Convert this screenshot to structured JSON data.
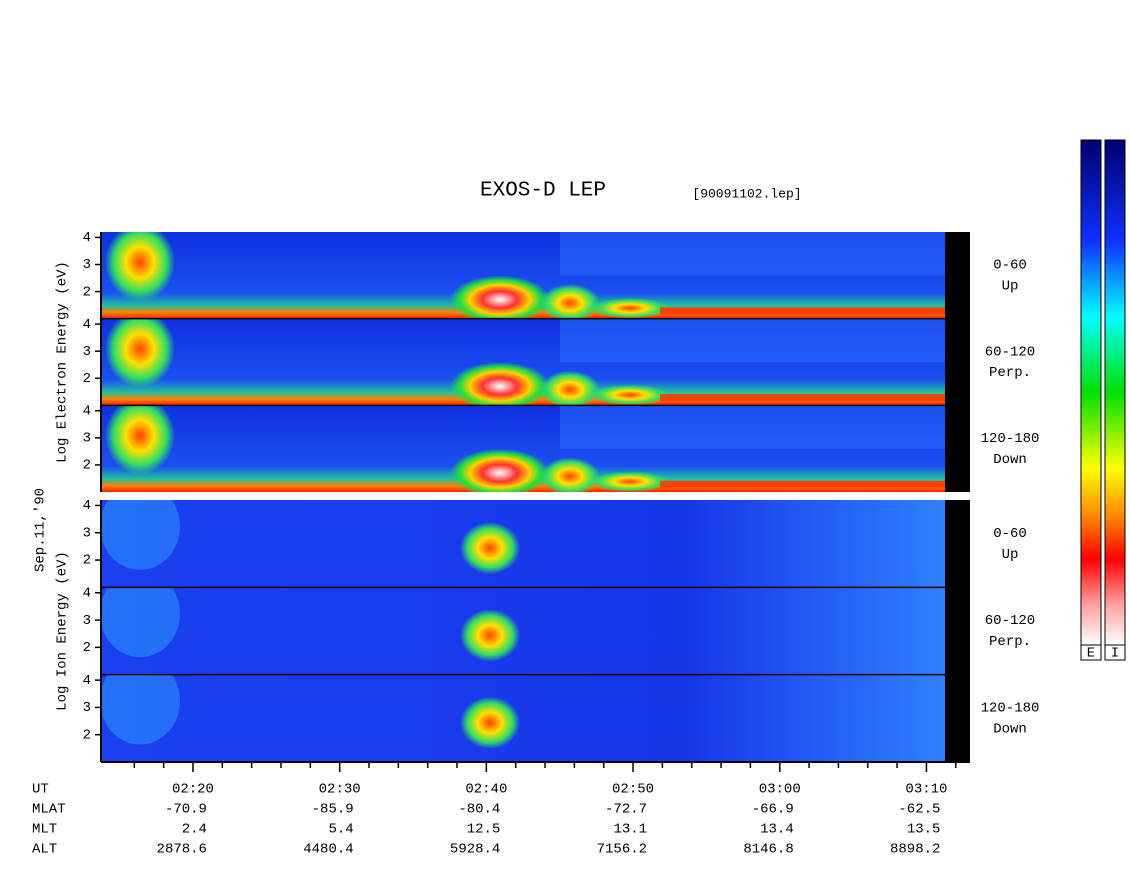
{
  "chart_data": {
    "type": "spectrogram",
    "title": "EXOS-D LEP",
    "subtitle": "[90091102.lep]",
    "date_label": "Sep.11,'90",
    "xlim": [
      133.73,
      192.97
    ],
    "xticks": [
      {
        "value": 140,
        "label": "02:20"
      },
      {
        "value": 150,
        "label": "02:30"
      },
      {
        "value": 160,
        "label": "02:40"
      },
      {
        "value": 170,
        "label": "02:50"
      },
      {
        "value": 180,
        "label": "03:00"
      },
      {
        "value": 190,
        "label": "03:10"
      }
    ],
    "xminorticks": [
      136,
      138,
      142,
      144,
      146,
      148,
      152,
      154,
      156,
      158,
      162,
      164,
      166,
      168,
      172,
      174,
      176,
      178,
      182,
      184,
      186,
      188,
      192
    ],
    "ylim": [
      1,
      4.2
    ],
    "yticks": [
      2,
      3,
      4
    ],
    "groups": [
      {
        "ylabel": "Log Electron Energy (eV)",
        "panels": [
          {
            "angle": "0-60",
            "direction": "Up"
          },
          {
            "angle": "60-120",
            "direction": "Perp."
          },
          {
            "angle": "120-180",
            "direction": "Down"
          }
        ]
      },
      {
        "ylabel": "Log Ion Energy (eV)",
        "panels": [
          {
            "angle": "0-60",
            "direction": "Up"
          },
          {
            "angle": "60-120",
            "direction": "Perp."
          },
          {
            "angle": "120-180",
            "direction": "Down"
          }
        ]
      }
    ],
    "ephemeris": {
      "time_label": "UT",
      "rows": [
        {
          "name": "MLAT",
          "values": [
            -70.9,
            -85.9,
            -80.4,
            -72.7,
            -66.9,
            -62.5
          ]
        },
        {
          "name": "MLT",
          "values": [
            2.4,
            5.4,
            12.5,
            13.1,
            13.4,
            13.5
          ]
        },
        {
          "name": "ALT",
          "values": [
            2878.6,
            4480.4,
            5928.4,
            7156.2,
            8146.8,
            8898.2
          ]
        }
      ]
    },
    "colorbars": [
      "E",
      "I"
    ]
  }
}
